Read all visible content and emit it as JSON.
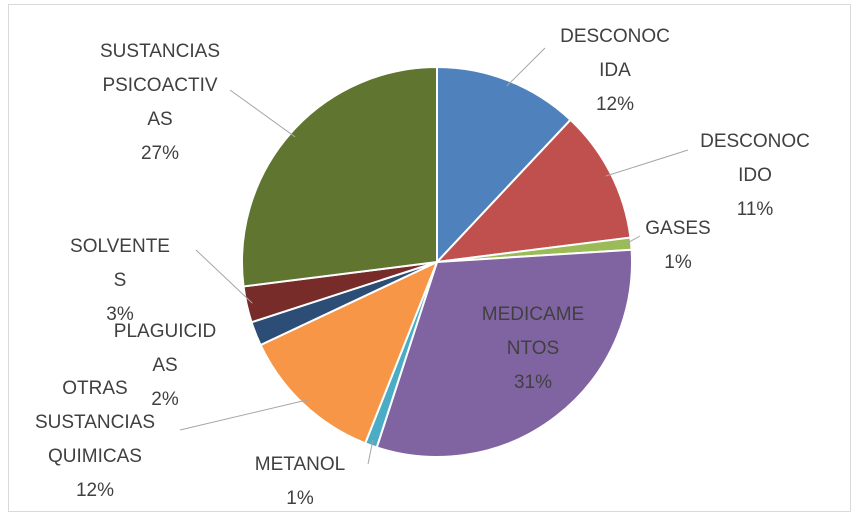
{
  "chart_data": {
    "type": "pie",
    "categories": [
      "DESCONOCIDA",
      "DESCONOCIDO",
      "GASES",
      "MEDICAMENTOS",
      "METANOL",
      "OTRAS SUSTANCIAS QUIMICAS",
      "PLAGUICIDAS",
      "SOLVENTES",
      "SUSTANCIAS PSICOACTIVAS"
    ],
    "values": [
      12,
      11,
      1,
      31,
      1,
      12,
      2,
      3,
      27
    ],
    "value_labels": [
      "12%",
      "11%",
      "1%",
      "31%",
      "1%",
      "12%",
      "2%",
      "3%",
      "27%"
    ],
    "colors": [
      "#4f81bd",
      "#c0504d",
      "#9bbb59",
      "#8064a2",
      "#4bacc6",
      "#f79646",
      "#2c4d75",
      "#772c2a",
      "#5f7530"
    ]
  }
}
